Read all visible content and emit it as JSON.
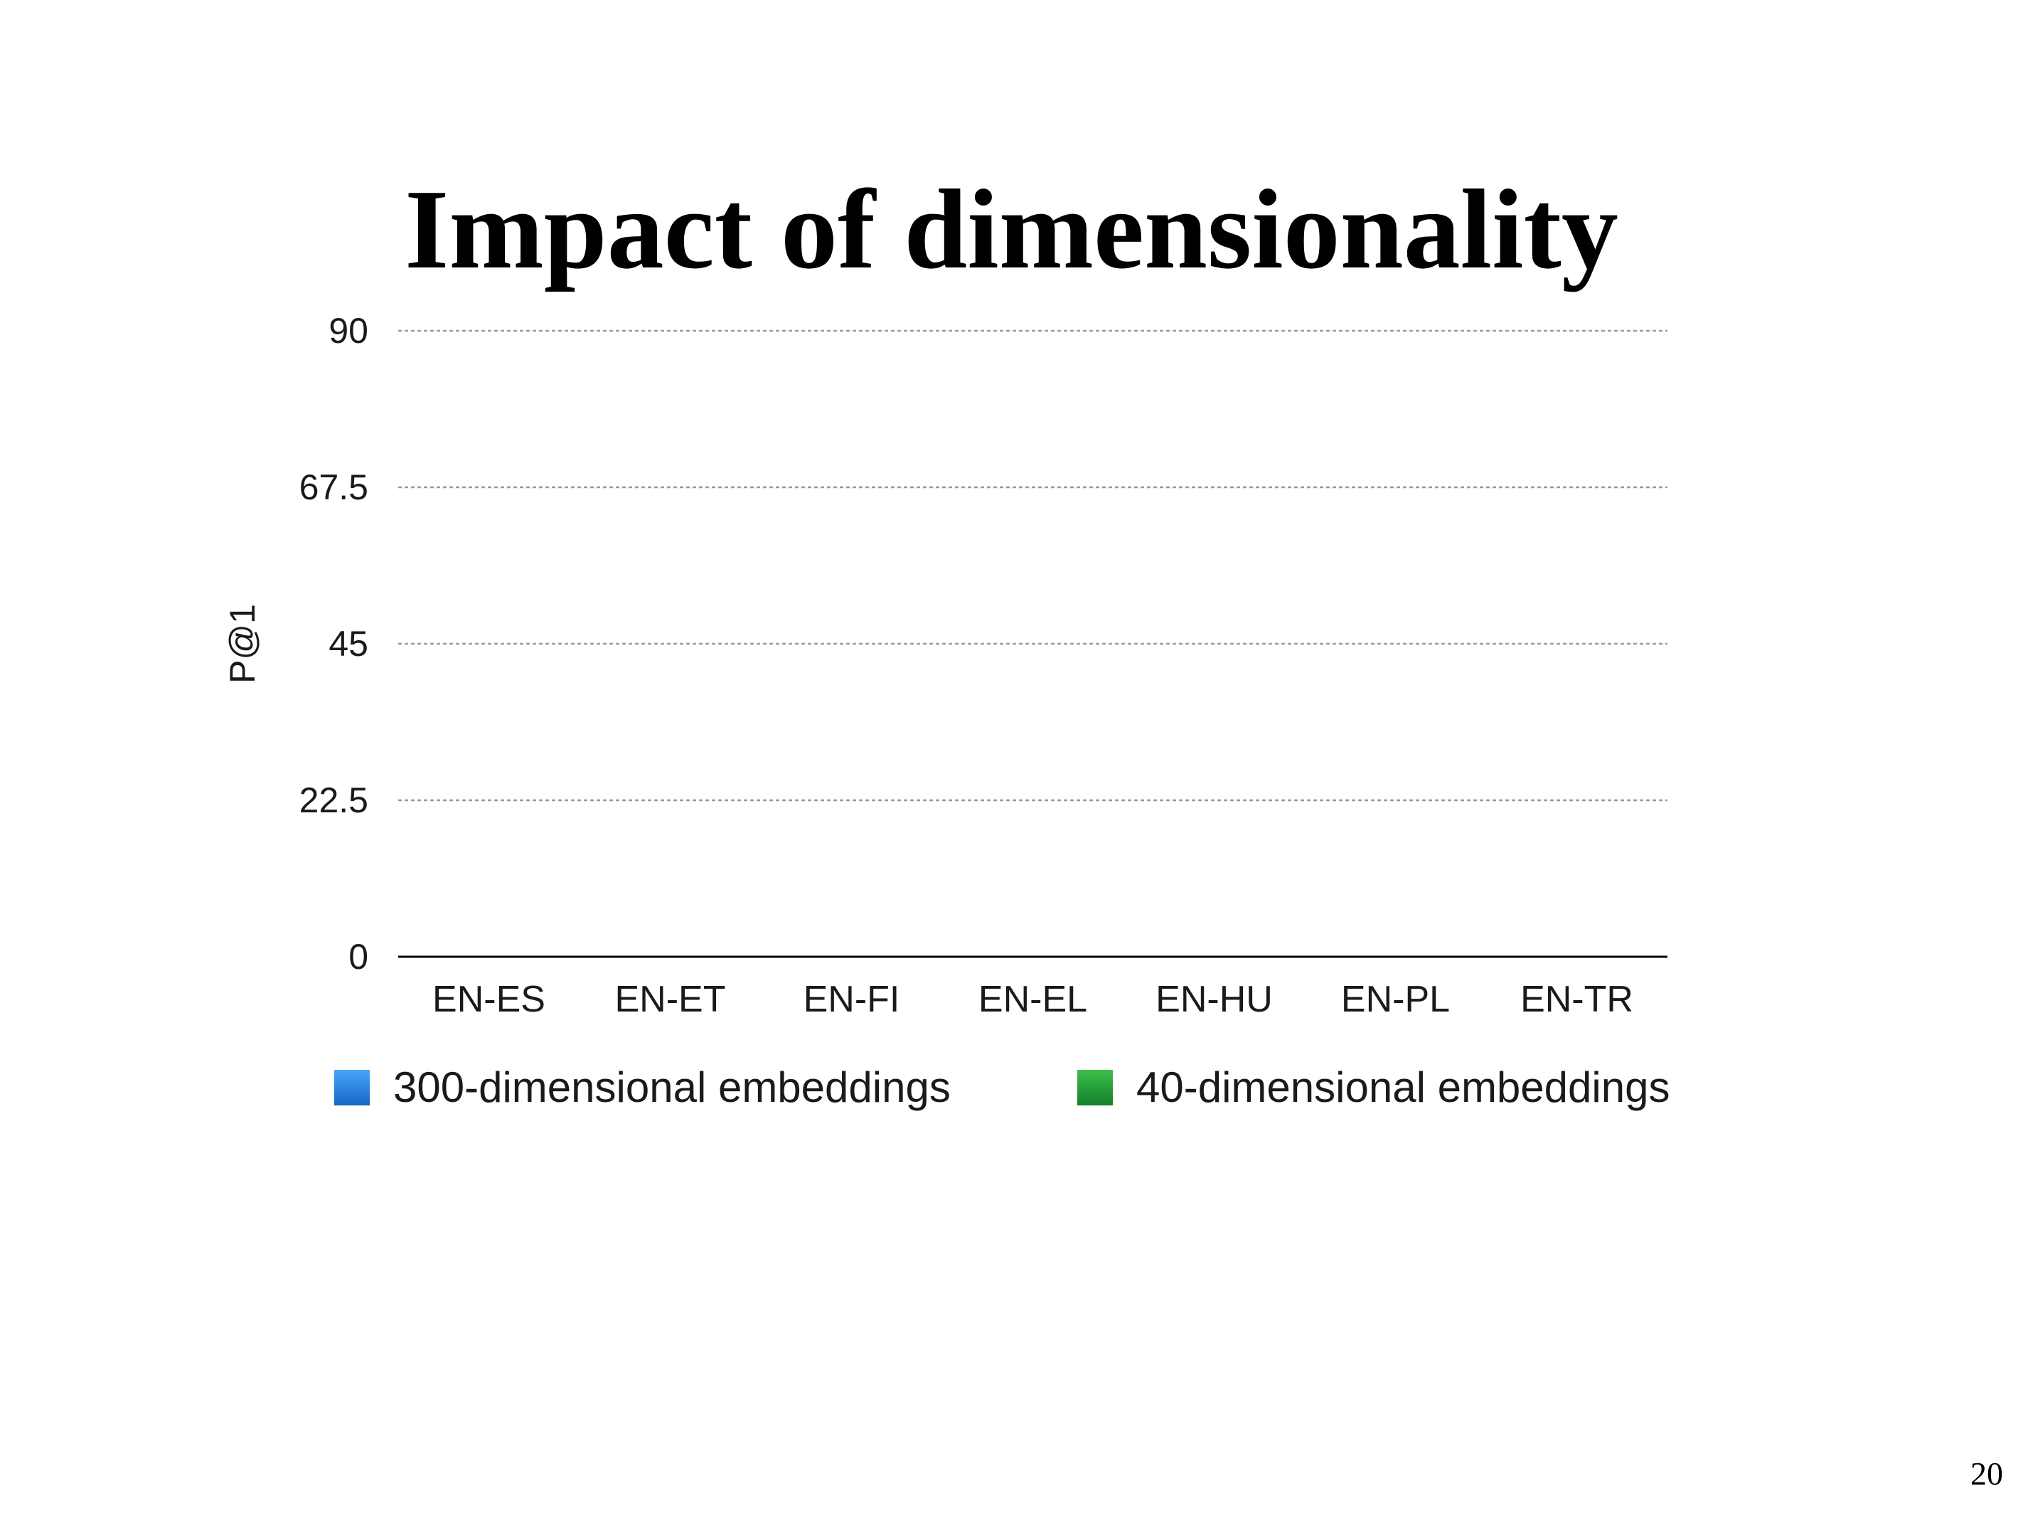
{
  "slide": {
    "title": "Impact of dimensionality",
    "page_number": "20"
  },
  "colors": {
    "series_300": "#1a7ce0",
    "series_40": "#1f9a2e",
    "gridline": "#999999",
    "axis": "#000000"
  },
  "chart_data": {
    "type": "bar",
    "title": "Impact of dimensionality",
    "xlabel": "",
    "ylabel": "P@1",
    "ylim": [
      0,
      90
    ],
    "yticks": [
      0,
      22.5,
      45,
      67.5,
      90
    ],
    "ytick_labels": [
      "0",
      "22.5",
      "45",
      "67.5",
      "90"
    ],
    "grid": true,
    "legend_position": "bottom",
    "categories": [
      "EN-ES",
      "EN-ET",
      "EN-FI",
      "EN-EL",
      "EN-HU",
      "EN-PL",
      "EN-TR"
    ],
    "series": [
      {
        "name": "300-dimensional embeddings",
        "color": "#1a7ce0",
        "values": [
          0,
          0,
          0,
          0,
          0,
          0,
          0
        ]
      },
      {
        "name": "40-dimensional embeddings",
        "color": "#1f9a2e",
        "values": [
          0,
          0,
          0,
          0,
          0,
          0,
          0
        ]
      }
    ]
  }
}
